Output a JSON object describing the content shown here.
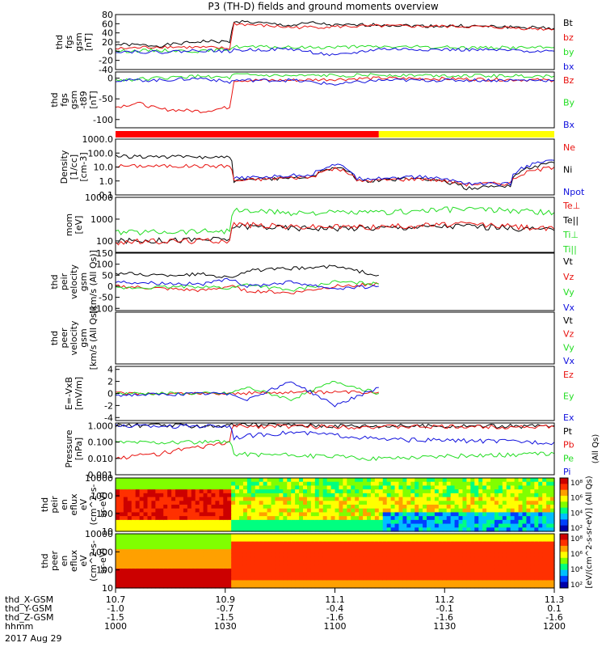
{
  "title": "P3 (TH-D) fields and ground moments overview",
  "colors": {
    "black": "#000000",
    "red": "#e8120f",
    "green": "#22dd22",
    "blue": "#1010dd",
    "bar_red": "#ff0000",
    "bar_yellow": "#ffff00"
  },
  "chart_data": [
    {
      "type": "line",
      "ylabel": [
        "thd",
        "fgs",
        "gsm",
        "[nT]"
      ],
      "yticks": [
        "80",
        "60",
        "40",
        "20",
        "0",
        "-20",
        "-40"
      ],
      "ylim": [
        -40,
        80
      ],
      "legend": [
        {
          "label": "Bt",
          "color": "black"
        },
        {
          "label": "bz",
          "color": "red"
        },
        {
          "label": "by",
          "color": "green"
        },
        {
          "label": "bx",
          "color": "blue"
        }
      ],
      "series": [
        {
          "color": "black",
          "x": [
            0,
            0.1,
            0.2,
            0.26,
            0.27,
            0.4,
            0.45,
            0.5,
            0.6,
            0.7,
            0.8,
            0.9,
            1.0
          ],
          "values": [
            15,
            12,
            22,
            20,
            66,
            56,
            62,
            56,
            58,
            55,
            55,
            53,
            50
          ]
        },
        {
          "color": "red",
          "x": [
            0,
            0.1,
            0.2,
            0.26,
            0.27,
            0.4,
            0.6,
            0.8,
            1.0
          ],
          "values": [
            5,
            10,
            8,
            6,
            60,
            52,
            55,
            54,
            48
          ]
        },
        {
          "color": "green",
          "x": [
            0,
            0.1,
            0.2,
            0.26,
            0.27,
            0.4,
            0.6,
            0.8,
            1.0
          ],
          "values": [
            0,
            2,
            0,
            5,
            10,
            8,
            10,
            8,
            8
          ]
        },
        {
          "color": "blue",
          "x": [
            0,
            0.1,
            0.2,
            0.26,
            0.27,
            0.4,
            0.5,
            0.6,
            0.8,
            1.0
          ],
          "values": [
            0,
            -2,
            2,
            0,
            2,
            5,
            -10,
            5,
            3,
            0
          ]
        }
      ]
    },
    {
      "type": "line",
      "ylabel": [
        "thd",
        "fgs",
        "gsm",
        "-t89",
        "[nT]"
      ],
      "yticks": [
        "0",
        "-50",
        "-100"
      ],
      "ylim": [
        -120,
        15
      ],
      "legend": [
        {
          "label": "Bz",
          "color": "red"
        },
        {
          "label": "By",
          "color": "green"
        },
        {
          "label": "Bx",
          "color": "blue"
        }
      ],
      "series": [
        {
          "color": "red",
          "x": [
            0,
            0.05,
            0.1,
            0.2,
            0.26,
            0.27,
            0.4,
            0.6,
            0.8,
            1.0
          ],
          "values": [
            -70,
            -60,
            -75,
            -80,
            -70,
            -5,
            -5,
            0,
            -2,
            -5
          ]
        },
        {
          "color": "green",
          "x": [
            0,
            0.1,
            0.2,
            0.26,
            0.27,
            0.4,
            0.6,
            0.8,
            1.0
          ],
          "values": [
            -5,
            0,
            5,
            0,
            8,
            5,
            8,
            6,
            5
          ]
        },
        {
          "color": "blue",
          "x": [
            0,
            0.1,
            0.2,
            0.26,
            0.27,
            0.4,
            0.5,
            0.6,
            0.8,
            1.0
          ],
          "values": [
            -5,
            -5,
            0,
            -10,
            -5,
            -5,
            -15,
            -5,
            -5,
            -5
          ]
        }
      ]
    },
    {
      "type": "bar",
      "segments": [
        {
          "from": 0,
          "to": 0.6,
          "color": "bar_red"
        },
        {
          "from": 0.6,
          "to": 1.0,
          "color": "bar_yellow"
        }
      ]
    },
    {
      "type": "line",
      "ylabel": [
        "Density",
        "[1/cc]",
        "[cm-3]"
      ],
      "yticks": [
        "1000.0",
        "100.0",
        "10.0",
        "1.0",
        "0.1"
      ],
      "ylim": [
        0.1,
        1000
      ],
      "log": true,
      "legend": [
        {
          "label": "Ne",
          "color": "red"
        },
        {
          "label": "Ni",
          "color": "black"
        },
        {
          "label": "Npot",
          "color": "blue"
        }
      ],
      "series": [
        {
          "color": "black",
          "x": [
            0,
            0.26,
            0.27,
            0.35,
            0.45,
            0.5,
            0.55,
            0.7,
            0.8,
            0.9,
            1.0
          ],
          "values": [
            60,
            50,
            1,
            1.5,
            2,
            10,
            1,
            1.5,
            0.3,
            0.5,
            20
          ]
        },
        {
          "color": "red",
          "x": [
            0,
            0.26,
            0.27,
            0.35,
            0.45,
            0.5,
            0.55,
            0.7,
            0.8,
            0.9,
            1.0
          ],
          "values": [
            12,
            12,
            1,
            1.5,
            2,
            8,
            1,
            1.5,
            0.6,
            0.7,
            10
          ]
        },
        {
          "color": "blue",
          "x": [
            0.27,
            0.35,
            0.45,
            0.5,
            0.55,
            0.7,
            0.8,
            0.9,
            1.0
          ],
          "values": [
            1.5,
            2,
            3,
            15,
            1.5,
            2,
            0.7,
            0.6,
            30
          ]
        }
      ]
    },
    {
      "type": "line",
      "ylabel": [
        "mom",
        "[eV]"
      ],
      "yticks": [
        "10000",
        "1000",
        "100"
      ],
      "ylim": [
        30,
        10000
      ],
      "log": true,
      "legend": [
        {
          "label": "Te⊥",
          "color": "red"
        },
        {
          "label": "Te||",
          "color": "black"
        },
        {
          "label": "Ti⊥",
          "color": "green"
        },
        {
          "label": "Ti||",
          "color": "green"
        }
      ],
      "series": [
        {
          "color": "black",
          "x": [
            0,
            0.26,
            0.27,
            0.4,
            0.6,
            0.8,
            1.0
          ],
          "values": [
            100,
            120,
            500,
            400,
            400,
            500,
            300
          ]
        },
        {
          "color": "red",
          "x": [
            0,
            0.26,
            0.27,
            0.4,
            0.6,
            0.8,
            1.0
          ],
          "values": [
            90,
            110,
            600,
            450,
            450,
            600,
            350
          ]
        },
        {
          "color": "green",
          "x": [
            0,
            0.26,
            0.27,
            0.4,
            0.6,
            0.8,
            1.0
          ],
          "values": [
            250,
            300,
            2500,
            2000,
            2000,
            3000,
            2000
          ]
        }
      ]
    },
    {
      "type": "line",
      "ylabel": [
        "thd",
        "peir",
        "velocity",
        "gsm",
        "[km/s (All Qs)]"
      ],
      "yticks": [
        "150",
        "100",
        "50",
        "0",
        "-50",
        "-100"
      ],
      "ylim": [
        -110,
        150
      ],
      "legend": [
        {
          "label": "Vt",
          "color": "black"
        },
        {
          "label": "Vz",
          "color": "red"
        },
        {
          "label": "Vy",
          "color": "green"
        },
        {
          "label": "Vx",
          "color": "blue"
        }
      ],
      "series": [
        {
          "color": "black",
          "x": [
            0,
            0.1,
            0.2,
            0.26,
            0.3,
            0.4,
            0.5,
            0.6
          ],
          "values": [
            60,
            50,
            55,
            40,
            70,
            80,
            90,
            50
          ]
        },
        {
          "color": "red",
          "x": [
            0,
            0.2,
            0.26,
            0.3,
            0.4,
            0.5,
            0.6
          ],
          "values": [
            0,
            -20,
            0,
            -20,
            -30,
            0,
            10
          ]
        },
        {
          "color": "green",
          "x": [
            0,
            0.2,
            0.26,
            0.3,
            0.4,
            0.5,
            0.6
          ],
          "values": [
            -10,
            0,
            -10,
            10,
            -20,
            20,
            10
          ]
        },
        {
          "color": "blue",
          "x": [
            0,
            0.2,
            0.26,
            0.3,
            0.4,
            0.5,
            0.6
          ],
          "values": [
            20,
            10,
            30,
            0,
            20,
            -10,
            0
          ]
        }
      ]
    },
    {
      "type": "line",
      "ylabel": [
        "thd",
        "peer",
        "velocity",
        "gsm",
        "[km/s (All Qs)]"
      ],
      "yticks": [],
      "legend": [
        {
          "label": "Vt",
          "color": "black"
        },
        {
          "label": "Vz",
          "color": "red"
        },
        {
          "label": "Vy",
          "color": "green"
        },
        {
          "label": "Vx",
          "color": "blue"
        }
      ],
      "series": []
    },
    {
      "type": "line",
      "ylabel": [
        "E=-VxB",
        "[mV/m]"
      ],
      "yticks": [
        "4",
        "2",
        "0",
        "-2",
        "-4"
      ],
      "ylim": [
        -4.5,
        4.5
      ],
      "legend": [
        {
          "label": "Ez",
          "color": "red"
        },
        {
          "label": "Ey",
          "color": "green"
        },
        {
          "label": "Ex",
          "color": "blue"
        }
      ],
      "series": [
        {
          "color": "red",
          "x": [
            0,
            0.2,
            0.26,
            0.4,
            0.6
          ],
          "values": [
            0,
            0,
            0,
            0.2,
            0.2
          ]
        },
        {
          "color": "green",
          "x": [
            0,
            0.26,
            0.3,
            0.4,
            0.5,
            0.6
          ],
          "values": [
            0,
            0,
            1,
            -1,
            2,
            0
          ]
        },
        {
          "color": "blue",
          "x": [
            0,
            0.26,
            0.3,
            0.4,
            0.5,
            0.6
          ],
          "values": [
            -0.3,
            0,
            -1,
            2,
            -2,
            1
          ]
        }
      ]
    },
    {
      "type": "line",
      "ylabel": [
        "Pressure",
        "[nPa]"
      ],
      "yticks": [
        "1.000",
        "0.100",
        "0.010",
        "0.001"
      ],
      "ylim": [
        0.001,
        1.5
      ],
      "log": true,
      "legend": [
        {
          "label": "Pt",
          "color": "black"
        },
        {
          "label": "Pb",
          "color": "red"
        },
        {
          "label": "Pe",
          "color": "green"
        },
        {
          "label": "Pi",
          "color": "blue"
        }
      ],
      "legend_side_label": "(All Qs)",
      "series": [
        {
          "color": "black",
          "x": [
            0,
            0.26,
            0.27,
            0.6,
            1.0
          ],
          "values": [
            1.1,
            1.0,
            1.2,
            1.0,
            1.0
          ]
        },
        {
          "color": "red",
          "x": [
            0,
            0.1,
            0.2,
            0.26,
            0.27,
            0.6,
            1.0
          ],
          "values": [
            0.01,
            0.02,
            0.05,
            0.1,
            1.0,
            0.9,
            0.9
          ]
        },
        {
          "color": "green",
          "x": [
            0,
            0.26,
            0.27,
            0.6,
            1.0
          ],
          "values": [
            0.1,
            0.1,
            0.02,
            0.01,
            0.02
          ]
        },
        {
          "color": "blue",
          "x": [
            0,
            0.26,
            0.27,
            0.4,
            0.6,
            1.0
          ],
          "values": [
            1.0,
            1.0,
            0.2,
            0.4,
            0.15,
            0.1
          ]
        }
      ]
    },
    {
      "type": "heatmap",
      "ylabel": [
        "thd",
        "peir",
        "en",
        "eflux",
        "eV",
        "(cm^2-s-",
        "sr-eV)"
      ],
      "yticks": [
        "10000",
        "1000",
        "100",
        "10"
      ]
    },
    {
      "type": "heatmap",
      "ylabel": [
        "thd",
        "peer",
        "en",
        "eflux",
        "eV",
        "(cm^2-s-",
        "sr-eV)"
      ],
      "yticks": [
        "10000",
        "1000",
        "100",
        "10"
      ]
    }
  ],
  "colorbars": {
    "ticks": [
      "10⁸",
      "10⁶",
      "10⁴",
      "10²"
    ],
    "label": "[eV/(cm^2-s-sr-eV)] (All Qs)"
  },
  "xaxis": {
    "rows": [
      {
        "label": "thd_X-GSM",
        "values": [
          "10.7",
          "10.9",
          "11.1",
          "11.2",
          "11.3"
        ]
      },
      {
        "label": "thd_Y-GSM",
        "values": [
          "-1.0",
          "-0.7",
          "-0.4",
          "-0.1",
          "0.1"
        ]
      },
      {
        "label": "thd_Z-GSM",
        "values": [
          "-1.5",
          "-1.5",
          "-1.6",
          "-1.6",
          "-1.6"
        ]
      },
      {
        "label": "hhmm",
        "values": [
          "1000",
          "1030",
          "1100",
          "1130",
          "1200"
        ]
      }
    ],
    "date": "2017 Aug 29"
  }
}
